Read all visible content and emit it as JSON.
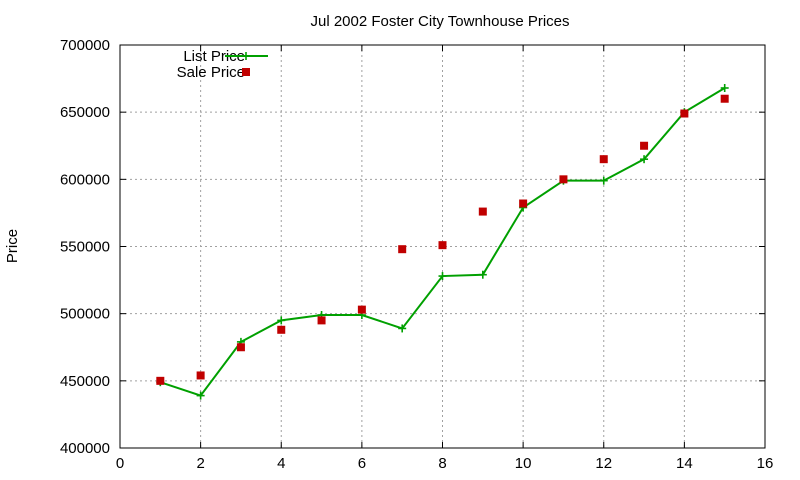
{
  "chart_data": {
    "type": "line",
    "title": "Jul 2002 Foster City Townhouse Prices",
    "xlabel": "",
    "ylabel": "Price",
    "xlim": [
      0,
      16
    ],
    "ylim": [
      400000,
      700000
    ],
    "x_ticks": [
      0,
      2,
      4,
      6,
      8,
      10,
      12,
      14,
      16
    ],
    "y_ticks": [
      400000,
      450000,
      500000,
      550000,
      600000,
      650000,
      700000
    ],
    "grid": true,
    "legend_position": "top-left",
    "series": [
      {
        "name": "List Price",
        "style": "line+cross",
        "color": "#00a000",
        "x": [
          1,
          2,
          3,
          4,
          5,
          6,
          7,
          8,
          9,
          10,
          11,
          12,
          13,
          14,
          15
        ],
        "y": [
          449000,
          439000,
          479000,
          495000,
          499000,
          499000,
          489000,
          528000,
          529000,
          579000,
          599000,
          599000,
          615000,
          650000,
          668000
        ]
      },
      {
        "name": "Sale Price",
        "style": "square-points",
        "color": "#c00000",
        "x": [
          1,
          2,
          3,
          4,
          5,
          6,
          7,
          8,
          9,
          10,
          11,
          12,
          13,
          14,
          15
        ],
        "y": [
          450000,
          454000,
          475000,
          488000,
          495000,
          503000,
          548000,
          551000,
          576000,
          582000,
          600000,
          615000,
          625000,
          649000,
          660000
        ]
      }
    ]
  }
}
